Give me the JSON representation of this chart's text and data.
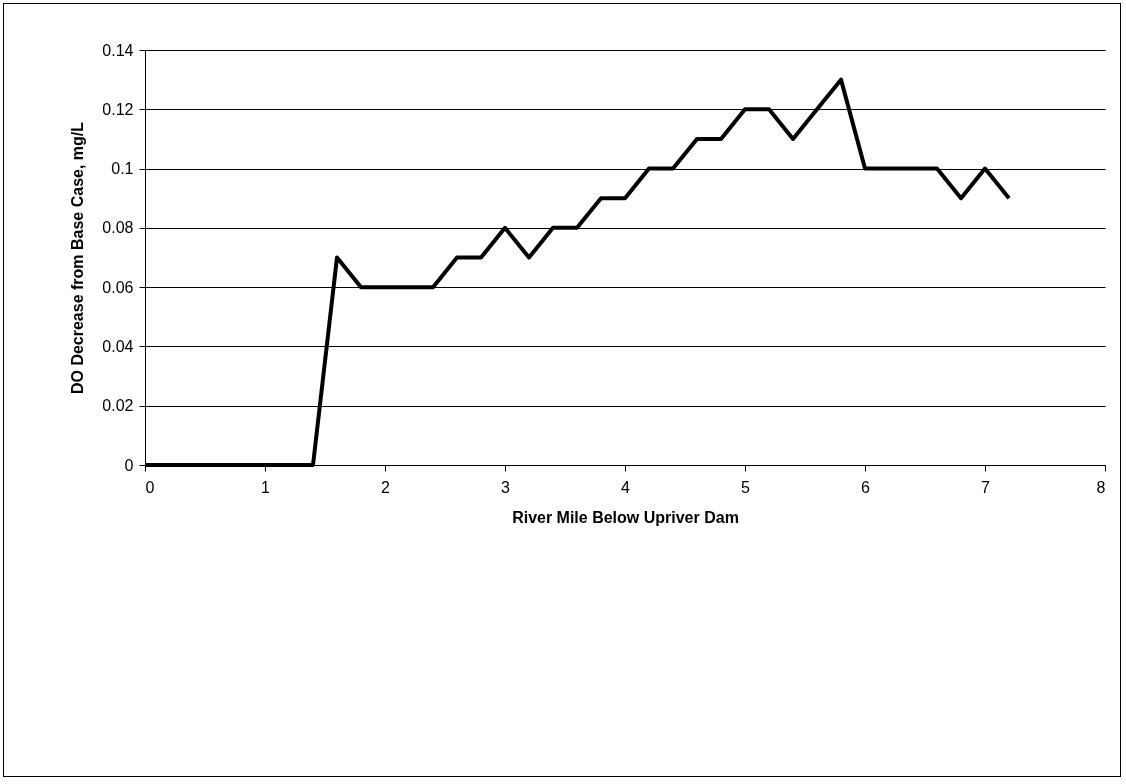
{
  "chart_data": {
    "type": "line",
    "xlabel": "River Mile Below Upriver Dam",
    "ylabel": "DO Decrease from Base Case, mg/L",
    "x": [
      0,
      0.2,
      0.4,
      0.6,
      0.8,
      1.0,
      1.2,
      1.4,
      1.6,
      1.8,
      2.0,
      2.2,
      2.4,
      2.6,
      2.8,
      3.0,
      3.2,
      3.4,
      3.6,
      3.8,
      4.0,
      4.2,
      4.4,
      4.6,
      4.8,
      5.0,
      5.2,
      5.4,
      5.6,
      5.8,
      6.0,
      6.2,
      6.4,
      6.6,
      6.8,
      7.0,
      7.2
    ],
    "series": [
      {
        "color": "#000000",
        "values": [
          0,
          0,
          0,
          0,
          0,
          0,
          0,
          0,
          0.07,
          0.06,
          0.06,
          0.06,
          0.06,
          0.07,
          0.07,
          0.08,
          0.07,
          0.08,
          0.08,
          0.09,
          0.09,
          0.1,
          0.1,
          0.11,
          0.11,
          0.12,
          0.12,
          0.11,
          0.12,
          0.13,
          0.1,
          0.1,
          0.1,
          0.1,
          0.09,
          0.1,
          0.09
        ]
      }
    ],
    "xlim": [
      0,
      8
    ],
    "xticks": [
      0,
      1,
      2,
      3,
      4,
      5,
      6,
      7,
      8
    ],
    "ylim": [
      0,
      0.14
    ],
    "yticks": [
      0,
      0.02,
      0.04,
      0.06,
      0.08,
      0.1,
      0.12,
      0.14
    ],
    "grid": "y",
    "marker": "none",
    "line_style": "solid"
  }
}
